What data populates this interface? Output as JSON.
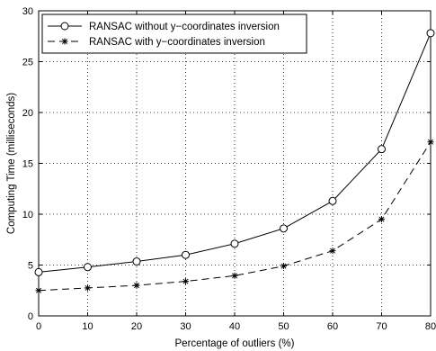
{
  "chart_data": {
    "type": "line",
    "x": [
      0,
      10,
      20,
      30,
      40,
      50,
      60,
      70,
      80
    ],
    "series": [
      {
        "name": "RANSAC without y−coordinates inversion",
        "values": [
          4.3,
          4.8,
          5.35,
          6.0,
          7.1,
          8.6,
          11.3,
          16.4,
          27.8
        ],
        "color": "#000000",
        "line_style": "solid",
        "marker": "circle"
      },
      {
        "name": "RANSAC with y−coordinates inversion",
        "values": [
          2.5,
          2.75,
          3.0,
          3.4,
          3.95,
          4.9,
          6.4,
          9.5,
          17.1
        ],
        "color": "#000000",
        "line_style": "dashed",
        "marker": "star"
      }
    ],
    "xlabel": "Percentage of outliers (%)",
    "ylabel": "Computing Time (milliseconds)",
    "xlim": [
      0,
      80
    ],
    "ylim": [
      0,
      30
    ],
    "xticks": [
      "0",
      "10",
      "20",
      "30",
      "40",
      "50",
      "60",
      "70",
      "80"
    ],
    "yticks": [
      "0",
      "5",
      "10",
      "15",
      "20",
      "25",
      "30"
    ],
    "grid": true,
    "legend_position": "top-left"
  }
}
